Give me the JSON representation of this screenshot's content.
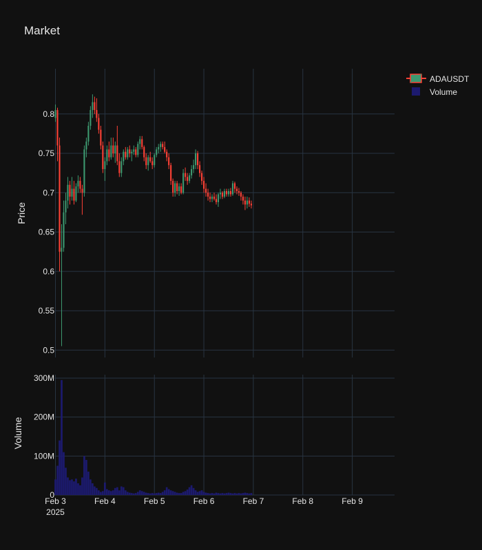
{
  "chart_data": {
    "type": "candlestick",
    "title": "Market",
    "legend": {
      "placement": "top-right",
      "entries": [
        {
          "name": "ADAUSDT",
          "kind": "candlestick"
        },
        {
          "name": "Volume",
          "kind": "bar"
        }
      ]
    },
    "colors": {
      "background": "#111111",
      "grid": "#283442",
      "text": "#e6e6e6",
      "increasing": "#3d9970",
      "decreasing": "#ff4136",
      "volume": "#1c1a6e"
    },
    "x_axis": {
      "type": "date",
      "range": [
        "2025-02-02 23:30",
        "2025-02-09 20:30"
      ],
      "ticks": [
        {
          "value": "2025-02-03 00:00",
          "label": "Feb 3",
          "sublabel": "2025"
        },
        {
          "value": "2025-02-04 00:00",
          "label": "Feb 4"
        },
        {
          "value": "2025-02-05 00:00",
          "label": "Feb 5"
        },
        {
          "value": "2025-02-06 00:00",
          "label": "Feb 6"
        },
        {
          "value": "2025-02-07 00:00",
          "label": "Feb 7"
        },
        {
          "value": "2025-02-08 00:00",
          "label": "Feb 8"
        },
        {
          "value": "2025-02-09 00:00",
          "label": "Feb 9"
        }
      ]
    },
    "price_axis": {
      "label": "Price",
      "range": [
        0.495,
        0.84
      ],
      "ticks": [
        {
          "value": 0.5,
          "label": "0.5"
        },
        {
          "value": 0.55,
          "label": "0.55"
        },
        {
          "value": 0.6,
          "label": "0.6"
        },
        {
          "value": 0.65,
          "label": "0.65"
        },
        {
          "value": 0.7,
          "label": "0.7"
        },
        {
          "value": 0.75,
          "label": "0.75"
        },
        {
          "value": 0.8,
          "label": "0.8"
        }
      ]
    },
    "volume_axis": {
      "label": "Volume",
      "range": [
        0,
        300000000
      ],
      "ticks": [
        {
          "value": 0,
          "label": "0"
        },
        {
          "value": 100000000,
          "label": "100M"
        },
        {
          "value": 200000000,
          "label": "200M"
        },
        {
          "value": 300000000,
          "label": "300M"
        }
      ]
    },
    "series": [
      {
        "name": "ADAUSDT",
        "interval_hours": 1,
        "start": "2025-02-03 00:00",
        "ohlc": [
          [
            0.795,
            0.812,
            0.79,
            0.805
          ],
          [
            0.805,
            0.808,
            0.74,
            0.76
          ],
          [
            0.76,
            0.77,
            0.6,
            0.625
          ],
          [
            0.625,
            0.66,
            0.505,
            0.63
          ],
          [
            0.63,
            0.69,
            0.625,
            0.675
          ],
          [
            0.675,
            0.7,
            0.66,
            0.69
          ],
          [
            0.69,
            0.72,
            0.68,
            0.71
          ],
          [
            0.71,
            0.715,
            0.685,
            0.695
          ],
          [
            0.695,
            0.72,
            0.69,
            0.705
          ],
          [
            0.705,
            0.715,
            0.685,
            0.69
          ],
          [
            0.69,
            0.712,
            0.688,
            0.708
          ],
          [
            0.708,
            0.722,
            0.7,
            0.715
          ],
          [
            0.715,
            0.72,
            0.7,
            0.705
          ],
          [
            0.705,
            0.71,
            0.672,
            0.7
          ],
          [
            0.7,
            0.76,
            0.695,
            0.755
          ],
          [
            0.755,
            0.77,
            0.745,
            0.765
          ],
          [
            0.765,
            0.79,
            0.76,
            0.785
          ],
          [
            0.785,
            0.81,
            0.78,
            0.805
          ],
          [
            0.805,
            0.825,
            0.795,
            0.815
          ],
          [
            0.815,
            0.822,
            0.8,
            0.805
          ],
          [
            0.805,
            0.82,
            0.79,
            0.795
          ],
          [
            0.795,
            0.8,
            0.775,
            0.78
          ],
          [
            0.78,
            0.785,
            0.755,
            0.76
          ],
          [
            0.76,
            0.765,
            0.725,
            0.73
          ],
          [
            0.73,
            0.745,
            0.715,
            0.74
          ],
          [
            0.74,
            0.76,
            0.735,
            0.755
          ],
          [
            0.755,
            0.765,
            0.74,
            0.745
          ],
          [
            0.745,
            0.77,
            0.742,
            0.76
          ],
          [
            0.76,
            0.77,
            0.745,
            0.75
          ],
          [
            0.75,
            0.765,
            0.738,
            0.76
          ],
          [
            0.76,
            0.785,
            0.735,
            0.74
          ],
          [
            0.74,
            0.75,
            0.72,
            0.725
          ],
          [
            0.725,
            0.745,
            0.72,
            0.74
          ],
          [
            0.74,
            0.755,
            0.735,
            0.752
          ],
          [
            0.752,
            0.758,
            0.742,
            0.745
          ],
          [
            0.745,
            0.758,
            0.742,
            0.755
          ],
          [
            0.755,
            0.76,
            0.745,
            0.75
          ],
          [
            0.75,
            0.755,
            0.74,
            0.752
          ],
          [
            0.752,
            0.76,
            0.748,
            0.755
          ],
          [
            0.755,
            0.758,
            0.745,
            0.748
          ],
          [
            0.748,
            0.765,
            0.745,
            0.762
          ],
          [
            0.762,
            0.772,
            0.755,
            0.768
          ],
          [
            0.768,
            0.772,
            0.755,
            0.758
          ],
          [
            0.758,
            0.76,
            0.74,
            0.745
          ],
          [
            0.745,
            0.75,
            0.73,
            0.735
          ],
          [
            0.735,
            0.748,
            0.728,
            0.745
          ],
          [
            0.745,
            0.752,
            0.738,
            0.74
          ],
          [
            0.74,
            0.745,
            0.73,
            0.735
          ],
          [
            0.735,
            0.75,
            0.732,
            0.748
          ],
          [
            0.748,
            0.758,
            0.745,
            0.755
          ],
          [
            0.755,
            0.762,
            0.75,
            0.758
          ],
          [
            0.758,
            0.765,
            0.752,
            0.762
          ],
          [
            0.762,
            0.765,
            0.755,
            0.758
          ],
          [
            0.758,
            0.765,
            0.75,
            0.752
          ],
          [
            0.752,
            0.755,
            0.74,
            0.745
          ],
          [
            0.745,
            0.75,
            0.73,
            0.735
          ],
          [
            0.735,
            0.738,
            0.71,
            0.715
          ],
          [
            0.715,
            0.718,
            0.695,
            0.7
          ],
          [
            0.7,
            0.715,
            0.695,
            0.712
          ],
          [
            0.712,
            0.715,
            0.698,
            0.702
          ],
          [
            0.702,
            0.712,
            0.696,
            0.708
          ],
          [
            0.708,
            0.712,
            0.698,
            0.7
          ],
          [
            0.7,
            0.73,
            0.698,
            0.725
          ],
          [
            0.725,
            0.732,
            0.715,
            0.72
          ],
          [
            0.72,
            0.725,
            0.71,
            0.715
          ],
          [
            0.715,
            0.725,
            0.712,
            0.722
          ],
          [
            0.722,
            0.735,
            0.718,
            0.73
          ],
          [
            0.73,
            0.742,
            0.725,
            0.735
          ],
          [
            0.735,
            0.755,
            0.73,
            0.75
          ],
          [
            0.75,
            0.753,
            0.73,
            0.735
          ],
          [
            0.735,
            0.74,
            0.72,
            0.725
          ],
          [
            0.725,
            0.728,
            0.71,
            0.715
          ],
          [
            0.715,
            0.72,
            0.7,
            0.705
          ],
          [
            0.705,
            0.712,
            0.695,
            0.7
          ],
          [
            0.7,
            0.705,
            0.69,
            0.695
          ],
          [
            0.695,
            0.7,
            0.688,
            0.692
          ],
          [
            0.692,
            0.698,
            0.688,
            0.695
          ],
          [
            0.695,
            0.7,
            0.69,
            0.692
          ],
          [
            0.692,
            0.698,
            0.685,
            0.688
          ],
          [
            0.688,
            0.7,
            0.682,
            0.698
          ],
          [
            0.698,
            0.705,
            0.692,
            0.7
          ],
          [
            0.7,
            0.702,
            0.692,
            0.695
          ],
          [
            0.695,
            0.705,
            0.693,
            0.702
          ],
          [
            0.702,
            0.705,
            0.695,
            0.698
          ],
          [
            0.698,
            0.705,
            0.695,
            0.702
          ],
          [
            0.702,
            0.706,
            0.695,
            0.698
          ],
          [
            0.698,
            0.715,
            0.696,
            0.712
          ],
          [
            0.712,
            0.714,
            0.7,
            0.705
          ],
          [
            0.705,
            0.708,
            0.698,
            0.702
          ],
          [
            0.702,
            0.706,
            0.696,
            0.7
          ],
          [
            0.7,
            0.702,
            0.69,
            0.695
          ],
          [
            0.695,
            0.698,
            0.685,
            0.69
          ],
          [
            0.69,
            0.695,
            0.678,
            0.685
          ],
          [
            0.685,
            0.695,
            0.68,
            0.69
          ],
          [
            0.69,
            0.694,
            0.682,
            0.686
          ],
          [
            0.686,
            0.69,
            0.68,
            0.684
          ]
        ]
      },
      {
        "name": "Volume",
        "interval_hours": 1,
        "start": "2025-02-03 00:00",
        "values": [
          40000000,
          75000000,
          140000000,
          295000000,
          110000000,
          70000000,
          45000000,
          38000000,
          40000000,
          35000000,
          42000000,
          30000000,
          25000000,
          45000000,
          100000000,
          90000000,
          60000000,
          40000000,
          30000000,
          22000000,
          18000000,
          12000000,
          8000000,
          10000000,
          32000000,
          15000000,
          12000000,
          10000000,
          12000000,
          18000000,
          20000000,
          12000000,
          22000000,
          20000000,
          12000000,
          8000000,
          6000000,
          5000000,
          4000000,
          5000000,
          8000000,
          12000000,
          10000000,
          8000000,
          6000000,
          5000000,
          4000000,
          5000000,
          4000000,
          5000000,
          6000000,
          5000000,
          8000000,
          12000000,
          20000000,
          15000000,
          12000000,
          10000000,
          8000000,
          6000000,
          5000000,
          5000000,
          8000000,
          10000000,
          14000000,
          20000000,
          25000000,
          18000000,
          12000000,
          8000000,
          10000000,
          12000000,
          8000000,
          6000000,
          5000000,
          4000000,
          5000000,
          4000000,
          6000000,
          5000000,
          4000000,
          5000000,
          4000000,
          5000000,
          6000000,
          5000000,
          4000000,
          5000000,
          4000000,
          5000000,
          4000000,
          5000000,
          6000000,
          5000000,
          4000000,
          5000000
        ]
      }
    ]
  }
}
